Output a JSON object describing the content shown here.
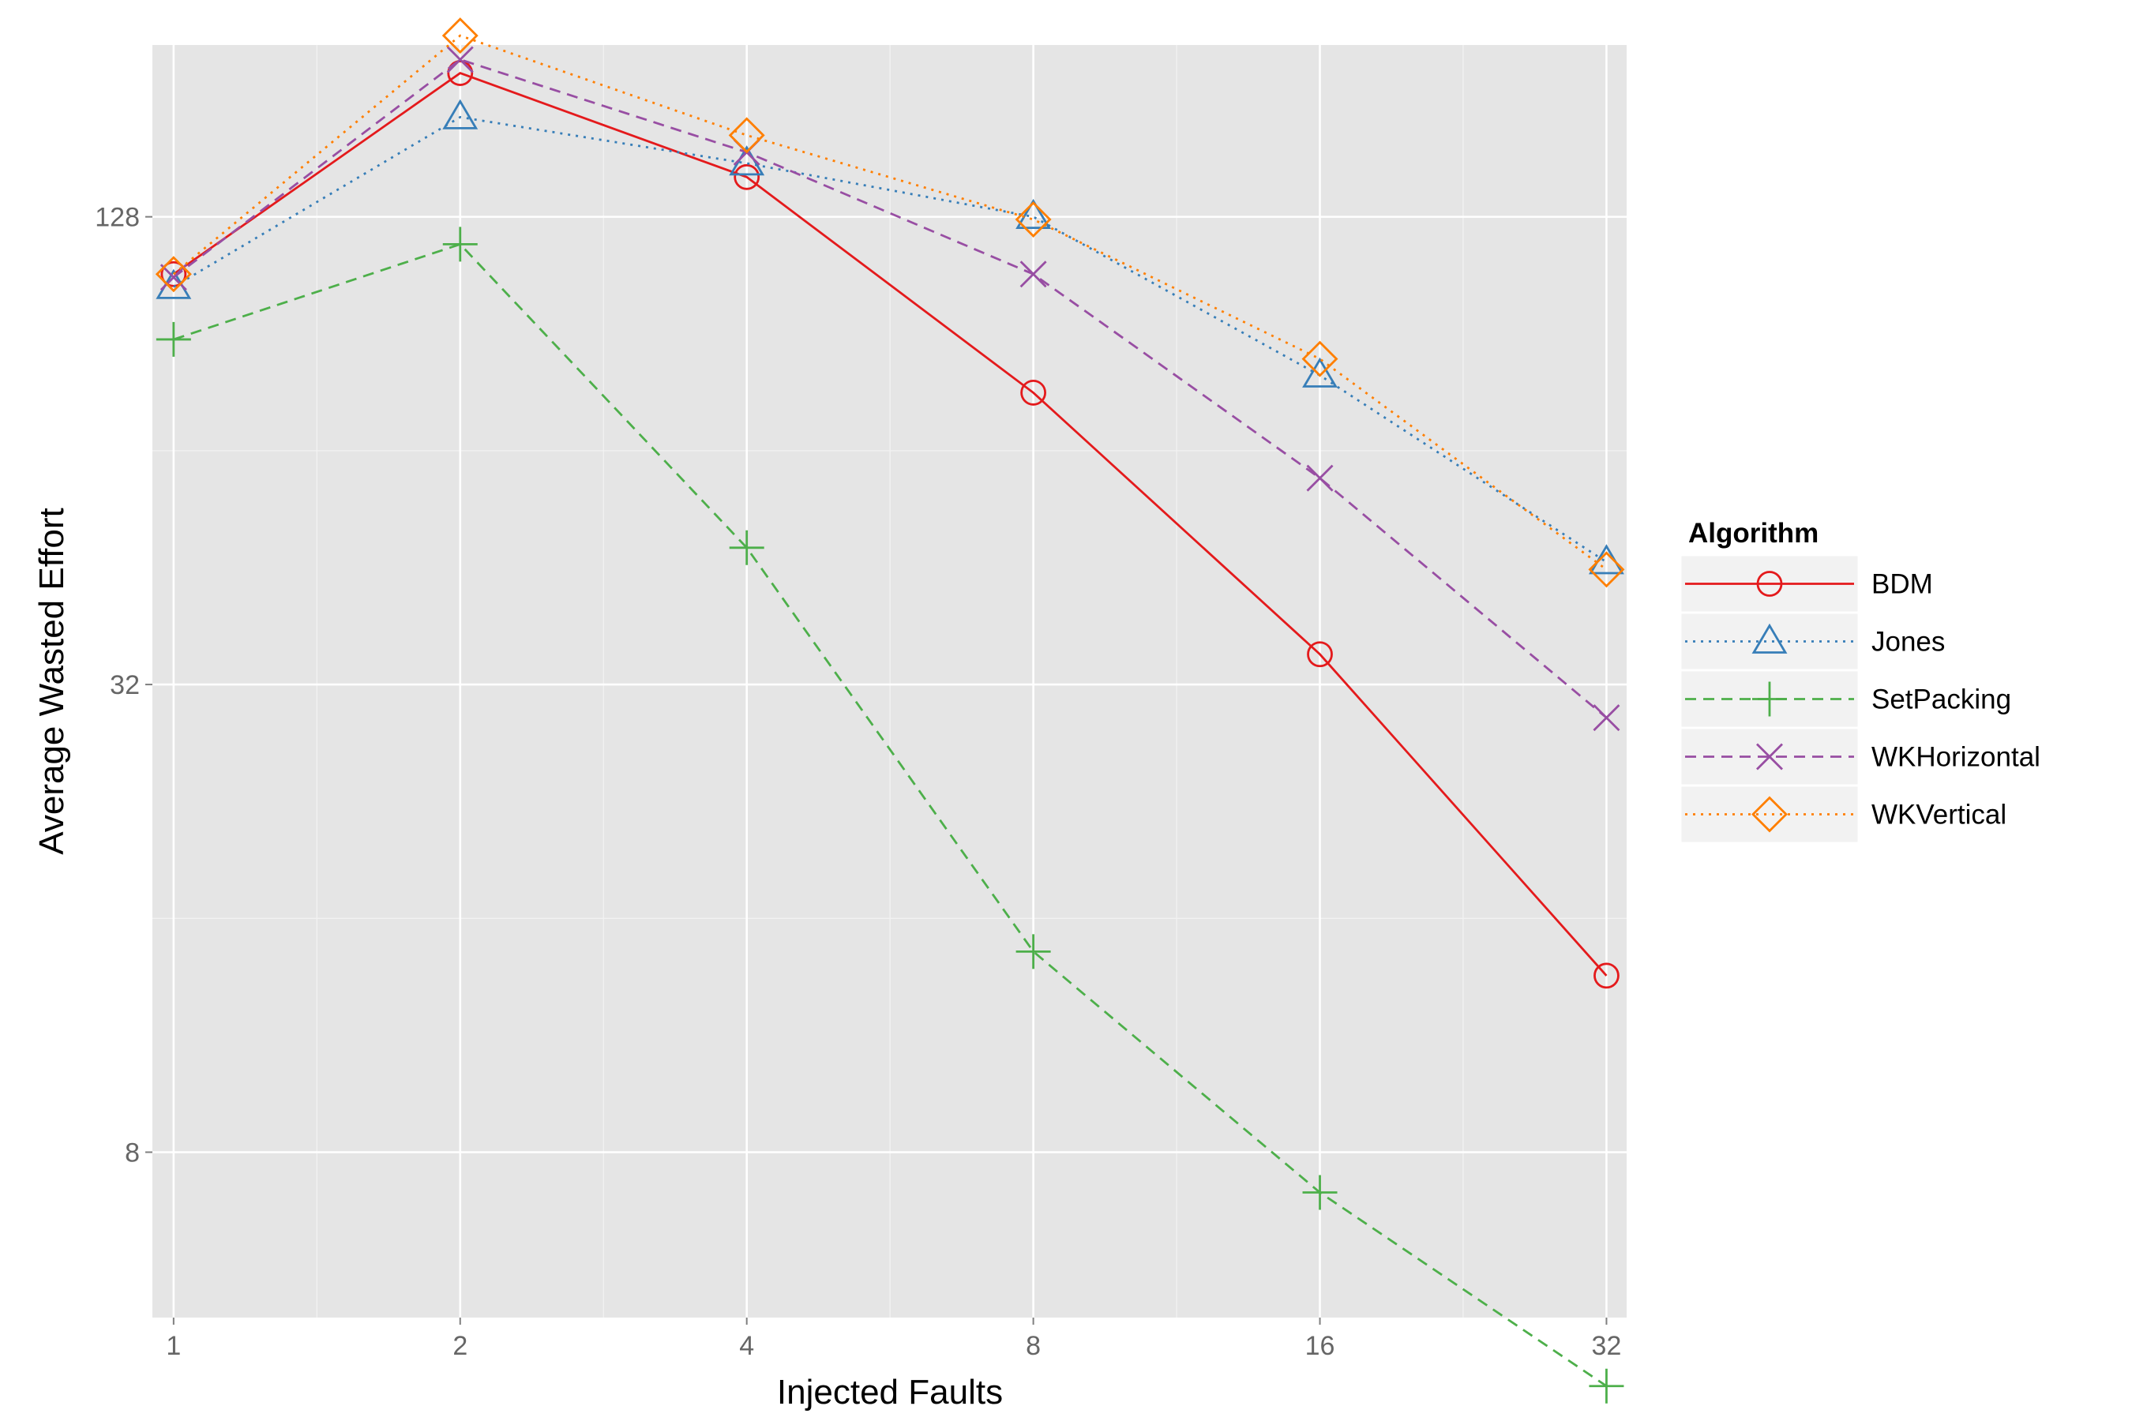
{
  "chart_data": {
    "type": "line",
    "title": "",
    "xlabel": "Injected Faults",
    "ylabel": "Average Wasted Effort",
    "x_scale": "log2",
    "y_scale": "log2",
    "x": [
      1,
      2,
      4,
      8,
      16,
      32
    ],
    "x_tick_labels": [
      "1",
      "2",
      "4",
      "8",
      "16",
      "32"
    ],
    "y_ticks": [
      8,
      32,
      128
    ],
    "y_tick_labels": [
      "8",
      "32",
      "128"
    ],
    "xlim": [
      0.95,
      33.6
    ],
    "ylim": [
      4.9,
      213
    ],
    "grid": true,
    "legend": {
      "title": "Algorithm",
      "position": "right"
    },
    "series": [
      {
        "name": "BDM",
        "color": "#e41a1c",
        "dash": "solid",
        "marker": "circle",
        "values": [
          108,
          196,
          144,
          76,
          35,
          13.5
        ]
      },
      {
        "name": "Jones",
        "color": "#377eb8",
        "dash": "dotted",
        "marker": "triangle",
        "values": [
          104,
          172,
          150,
          128,
          80,
          46
        ]
      },
      {
        "name": "SetPacking",
        "color": "#4daf4a",
        "dash": "dashed",
        "marker": "plus",
        "values": [
          89,
          118,
          48,
          14.5,
          7.1,
          4.0
        ]
      },
      {
        "name": "WKHorizontal",
        "color": "#984ea3",
        "dash": "dashed",
        "marker": "cross",
        "values": [
          107,
          204,
          155,
          108,
          59,
          29
        ]
      },
      {
        "name": "WKVertical",
        "color": "#ff7f00",
        "dash": "dotted",
        "marker": "diamond",
        "values": [
          108,
          219,
          163,
          127,
          84,
          45
        ]
      }
    ]
  }
}
